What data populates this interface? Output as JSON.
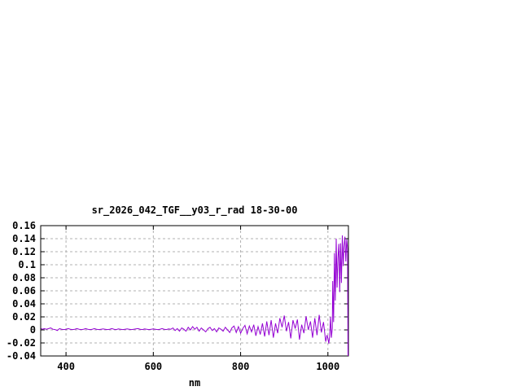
{
  "window": {
    "background_color": "#ffffff",
    "text_color": "#000000"
  },
  "chart_data": {
    "type": "line",
    "title": "sr_2026_042_TGF__y03_r_rad 18-30-00",
    "xlabel": "nm",
    "ylabel": "",
    "legend": "none",
    "grid": true,
    "line_color": "#9400d3",
    "grid_color": "#b0b0b0",
    "border_color": "#000000",
    "xlim": [
      342,
      1047
    ],
    "ylim": [
      -0.04,
      0.16
    ],
    "x_ticks": [
      {
        "value": 400,
        "label": "400"
      },
      {
        "value": 600,
        "label": "600"
      },
      {
        "value": 800,
        "label": "800"
      },
      {
        "value": 1000,
        "label": "1000"
      }
    ],
    "y_ticks": [
      {
        "value": 0.16,
        "label": "0.16"
      },
      {
        "value": 0.14,
        "label": "0.14"
      },
      {
        "value": 0.12,
        "label": "0.12"
      },
      {
        "value": 0.1,
        "label": "0.1"
      },
      {
        "value": 0.08,
        "label": "0.08"
      },
      {
        "value": 0.06,
        "label": "0.06"
      },
      {
        "value": 0.04,
        "label": "0.04"
      },
      {
        "value": 0.02,
        "label": "0.02"
      },
      {
        "value": 0.0,
        "label": "0"
      },
      {
        "value": -0.02,
        "label": "-0.02"
      },
      {
        "value": -0.04,
        "label": "-0.04"
      }
    ],
    "points": [
      [
        343,
        0.002
      ],
      [
        346,
        0.001
      ],
      [
        350,
        0.002
      ],
      [
        355,
        0.001
      ],
      [
        360,
        0.002
      ],
      [
        365,
        0.003
      ],
      [
        370,
        0.001
      ],
      [
        375,
        0.0005
      ],
      [
        380,
        -0.001
      ],
      [
        385,
        0.002
      ],
      [
        390,
        0.001
      ],
      [
        395,
        0.0005
      ],
      [
        400,
        0.001
      ],
      [
        405,
        0.002
      ],
      [
        410,
        0.001
      ],
      [
        415,
        0.0005
      ],
      [
        420,
        0.001
      ],
      [
        425,
        0.002
      ],
      [
        430,
        0.001
      ],
      [
        435,
        0.0005
      ],
      [
        440,
        0.001
      ],
      [
        445,
        0.002
      ],
      [
        450,
        0.001
      ],
      [
        455,
        0.0005
      ],
      [
        460,
        0.001
      ],
      [
        465,
        0.002
      ],
      [
        470,
        0.001
      ],
      [
        475,
        0.0005
      ],
      [
        480,
        0.001
      ],
      [
        485,
        0.0015
      ],
      [
        490,
        0.001
      ],
      [
        495,
        0.0005
      ],
      [
        500,
        0.001
      ],
      [
        505,
        0.002
      ],
      [
        510,
        0.001
      ],
      [
        515,
        0.0005
      ],
      [
        520,
        0.0015
      ],
      [
        525,
        0.001
      ],
      [
        530,
        0.0005
      ],
      [
        535,
        0.001
      ],
      [
        540,
        0.0015
      ],
      [
        545,
        0.001
      ],
      [
        550,
        0.0005
      ],
      [
        555,
        0.001
      ],
      [
        560,
        0.0015
      ],
      [
        565,
        0.002
      ],
      [
        570,
        0.001
      ],
      [
        575,
        0.0005
      ],
      [
        580,
        0.0015
      ],
      [
        585,
        0.001
      ],
      [
        590,
        0.0005
      ],
      [
        595,
        0.001
      ],
      [
        600,
        0.0015
      ],
      [
        605,
        0.001
      ],
      [
        610,
        0.0005
      ],
      [
        615,
        0.001
      ],
      [
        620,
        0.002
      ],
      [
        625,
        0.001
      ],
      [
        630,
        0.0005
      ],
      [
        635,
        0.0015
      ],
      [
        640,
        0.001
      ],
      [
        645,
        0.003
      ],
      [
        650,
        -0.001
      ],
      [
        655,
        0.002
      ],
      [
        660,
        -0.002
      ],
      [
        665,
        0.003
      ],
      [
        670,
        0.001
      ],
      [
        675,
        -0.002
      ],
      [
        680,
        0.004
      ],
      [
        685,
        0
      ],
      [
        690,
        0.005
      ],
      [
        695,
        0.001
      ],
      [
        700,
        0.004
      ],
      [
        705,
        -0.002
      ],
      [
        710,
        0.003
      ],
      [
        715,
        0
      ],
      [
        720,
        -0.003
      ],
      [
        725,
        0.002
      ],
      [
        730,
        0.004
      ],
      [
        735,
        -0.001
      ],
      [
        740,
        0.002
      ],
      [
        745,
        -0.003
      ],
      [
        750,
        0.003
      ],
      [
        755,
        0.001
      ],
      [
        760,
        -0.002
      ],
      [
        765,
        0.004
      ],
      [
        770,
        0
      ],
      [
        775,
        -0.004
      ],
      [
        780,
        0.003
      ],
      [
        785,
        0.006
      ],
      [
        790,
        -0.004
      ],
      [
        795,
        0.005
      ],
      [
        800,
        -0.005
      ],
      [
        805,
        0.002
      ],
      [
        810,
        0.007
      ],
      [
        815,
        -0.006
      ],
      [
        820,
        0.006
      ],
      [
        825,
        -0.003
      ],
      [
        830,
        0.008
      ],
      [
        835,
        -0.009
      ],
      [
        840,
        0.005
      ],
      [
        845,
        -0.007
      ],
      [
        850,
        0.01
      ],
      [
        855,
        -0.01
      ],
      [
        860,
        0.013
      ],
      [
        865,
        -0.008
      ],
      [
        870,
        0.015
      ],
      [
        875,
        -0.012
      ],
      [
        880,
        0.01
      ],
      [
        885,
        -0.005
      ],
      [
        890,
        0.018
      ],
      [
        895,
        0.004
      ],
      [
        900,
        0.022
      ],
      [
        905,
        -0.002
      ],
      [
        910,
        0.012
      ],
      [
        915,
        -0.013
      ],
      [
        920,
        0.015
      ],
      [
        925,
        0.002
      ],
      [
        930,
        0.016
      ],
      [
        935,
        -0.015
      ],
      [
        940,
        0.008
      ],
      [
        945,
        -0.005
      ],
      [
        950,
        0.021
      ],
      [
        955,
        0
      ],
      [
        960,
        0.013
      ],
      [
        965,
        -0.012
      ],
      [
        970,
        0.018
      ],
      [
        975,
        -0.008
      ],
      [
        980,
        0.023
      ],
      [
        985,
        -0.004
      ],
      [
        990,
        0.012
      ],
      [
        995,
        -0.018
      ],
      [
        998,
        -0.008
      ],
      [
        1000,
        -0.013
      ],
      [
        1002,
        -0.021
      ],
      [
        1004,
        -0.01
      ],
      [
        1006,
        0.02
      ],
      [
        1008,
        -0.012
      ],
      [
        1010,
        0.003
      ],
      [
        1011,
        0.075
      ],
      [
        1013,
        0.012
      ],
      [
        1015,
        0.118
      ],
      [
        1017,
        0.045
      ],
      [
        1019,
        0.14
      ],
      [
        1021,
        0.065
      ],
      [
        1023,
        0.11
      ],
      [
        1025,
        0.132
      ],
      [
        1027,
        0.058
      ],
      [
        1029,
        0.133
      ],
      [
        1031,
        0.072
      ],
      [
        1033,
        0.145
      ],
      [
        1035,
        0.098
      ],
      [
        1037,
        0.128
      ],
      [
        1039,
        0.143
      ],
      [
        1041,
        0.105
      ],
      [
        1043,
        0.139
      ],
      [
        1045,
        0.125
      ],
      [
        1046,
        -0.04
      ]
    ]
  }
}
